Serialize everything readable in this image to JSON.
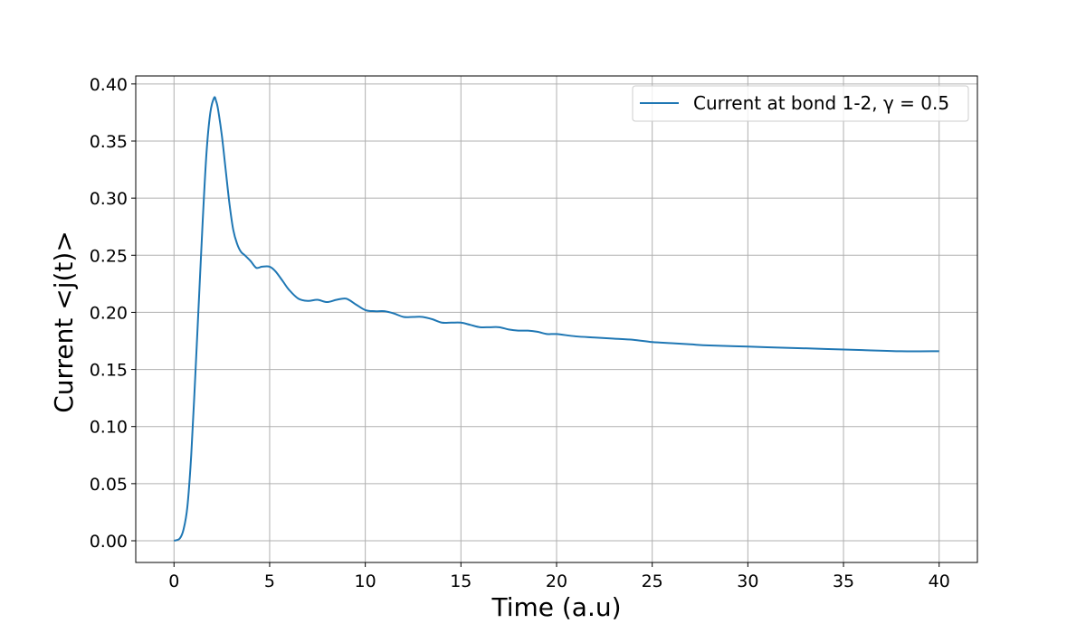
{
  "chart_data": {
    "type": "line",
    "title": "",
    "xlabel": "Time (a.u)",
    "ylabel": "Current <j(t)>",
    "xlim": [
      -2,
      42
    ],
    "ylim": [
      -0.019,
      0.407
    ],
    "xticks": [
      0,
      5,
      10,
      15,
      20,
      25,
      30,
      35,
      40
    ],
    "yticks": [
      0.0,
      0.05,
      0.1,
      0.15,
      0.2,
      0.25,
      0.3,
      0.35,
      0.4
    ],
    "xtick_labels": [
      "0",
      "5",
      "10",
      "15",
      "20",
      "25",
      "30",
      "35",
      "40"
    ],
    "ytick_labels": [
      "0.00",
      "0.05",
      "0.10",
      "0.15",
      "0.20",
      "0.25",
      "0.30",
      "0.35",
      "0.40"
    ],
    "grid": true,
    "legend_position": "top-right",
    "series": [
      {
        "name": "Current at bond 1-2, γ = 0.5",
        "color": "#1f77b4",
        "x": [
          0,
          0.3,
          0.5,
          0.7,
          0.9,
          1.1,
          1.3,
          1.5,
          1.7,
          1.9,
          2.1,
          2.2,
          2.3,
          2.5,
          2.7,
          2.9,
          3.1,
          3.3,
          3.5,
          3.7,
          4.0,
          4.3,
          4.6,
          5.0,
          5.3,
          5.7,
          6.0,
          6.5,
          7.0,
          7.5,
          8.0,
          8.5,
          9.0,
          9.5,
          10.0,
          10.5,
          11.0,
          11.5,
          12.0,
          12.5,
          13.0,
          13.5,
          14.0,
          14.5,
          15.0,
          15.5,
          16.0,
          16.5,
          17.0,
          17.5,
          18.0,
          18.5,
          19.0,
          19.5,
          20.0,
          21.0,
          22.0,
          23.0,
          24.0,
          25.0,
          26.0,
          27.0,
          28.0,
          30.0,
          32.0,
          34.0,
          36.0,
          38.0,
          40.0
        ],
        "y": [
          0.0,
          0.002,
          0.01,
          0.03,
          0.075,
          0.14,
          0.21,
          0.28,
          0.34,
          0.375,
          0.388,
          0.385,
          0.378,
          0.355,
          0.325,
          0.295,
          0.272,
          0.26,
          0.253,
          0.25,
          0.245,
          0.239,
          0.24,
          0.24,
          0.236,
          0.227,
          0.22,
          0.212,
          0.21,
          0.211,
          0.209,
          0.211,
          0.212,
          0.207,
          0.202,
          0.201,
          0.201,
          0.199,
          0.196,
          0.196,
          0.196,
          0.194,
          0.191,
          0.191,
          0.191,
          0.189,
          0.187,
          0.187,
          0.187,
          0.185,
          0.184,
          0.184,
          0.183,
          0.181,
          0.181,
          0.179,
          0.178,
          0.177,
          0.176,
          0.174,
          0.173,
          0.172,
          0.171,
          0.17,
          0.169,
          0.168,
          0.167,
          0.166,
          0.166
        ]
      }
    ]
  }
}
